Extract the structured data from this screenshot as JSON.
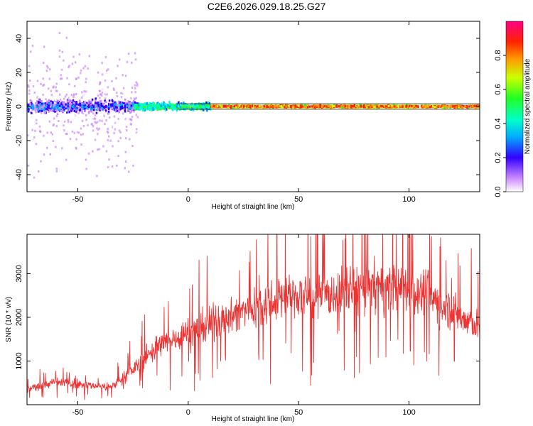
{
  "title": "C2E6.2026.029.18.25.G27",
  "chart_data": [
    {
      "type": "heatmap",
      "title": "C2E6.2026.029.18.25.G27",
      "xlabel": "Height of straight line (km)",
      "ylabel": "Frequency (Hz)",
      "xlim": [
        -73,
        132
      ],
      "ylim": [
        -50,
        50
      ],
      "xticks": [
        -50,
        0,
        50,
        100
      ],
      "yticks": [
        -40,
        -20,
        0,
        20,
        40
      ],
      "description_series": [
        {
          "x_range": [
            -73,
            -25
          ],
          "freq_center": 0,
          "freq_spread": 5,
          "amplitude": 0.3
        },
        {
          "x_range": [
            -25,
            10
          ],
          "freq_center": 0,
          "freq_spread": 3,
          "amplitude": 0.55
        },
        {
          "x_range": [
            10,
            132
          ],
          "freq_center": 0,
          "freq_spread": 1,
          "amplitude": 0.9
        }
      ],
      "colorbar": {
        "label": "Normalized spectral amplitude",
        "ticks": [
          0.0,
          0.2,
          0.4,
          0.6,
          0.8
        ],
        "tick_labels": [
          "0.0",
          "0.2",
          "0.4",
          "0.6",
          "0.8"
        ],
        "range": [
          0,
          1
        ]
      }
    },
    {
      "type": "line",
      "xlabel": "Height of straight line (km)",
      "ylabel": "SNR (10 * v/v)",
      "xlim": [
        -73,
        132
      ],
      "ylim": [
        0,
        3900
      ],
      "xticks": [
        -50,
        0,
        50,
        100
      ],
      "yticks": [
        1000,
        2000,
        3000
      ],
      "color": "#ee3333",
      "series": [
        {
          "name": "SNR",
          "x": [
            -73,
            -60,
            -45,
            -35,
            -25,
            -15,
            -5,
            5,
            15,
            25,
            35,
            45,
            55,
            65,
            75,
            85,
            95,
            105,
            115,
            125,
            132
          ],
          "values": [
            350,
            520,
            450,
            400,
            800,
            1300,
            1550,
            1750,
            1950,
            2150,
            2350,
            2500,
            2450,
            2500,
            2650,
            2700,
            2650,
            2600,
            2300,
            1950,
            1750
          ]
        }
      ]
    }
  ]
}
